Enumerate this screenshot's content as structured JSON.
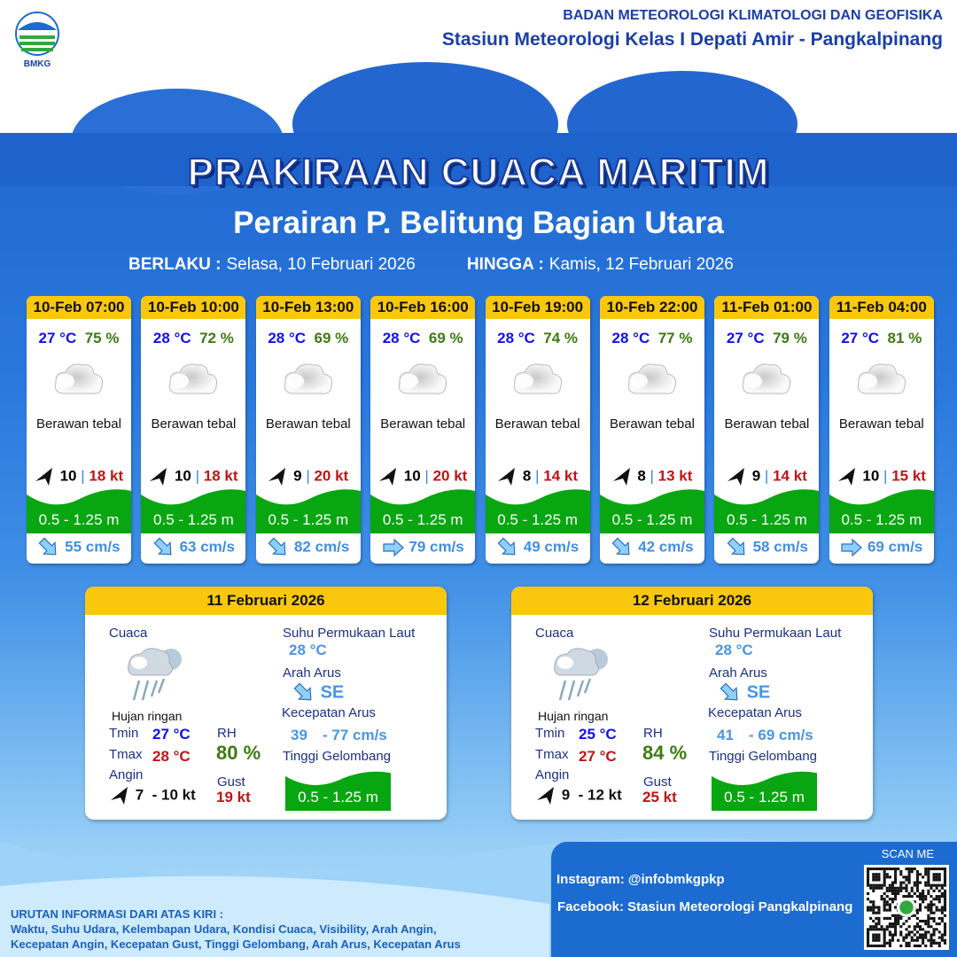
{
  "header": {
    "agency": "BADAN METEOROLOGI KLIMATOLOGI DAN GEOFISIKA",
    "station": "Stasiun Meteorologi Kelas I Depati Amir - Pangkalpinang",
    "logo_text": "BMKG"
  },
  "title": "PRAKIRAAN CUACA MARITIM",
  "subtitle": "Perairan P. Belitung Bagian Utara",
  "validity": {
    "from_label": "BERLAKU :",
    "from": "Selasa, 10 Februari 2026",
    "to_label": "HINGGA :",
    "to": "Kamis, 12 Februari 2026"
  },
  "colors": {
    "yellow": "#f9c80e",
    "wave_green": "#08a610",
    "temp_blue": "#1010f0",
    "gust_red": "#c01414",
    "rh_green": "#3e7a12"
  },
  "forecasts": [
    {
      "time": "10-Feb 07:00",
      "temp": "27 °C",
      "rh": "75 %",
      "icon": "thick-cloud-icon",
      "condition": "Berawan tebal",
      "wind": "10",
      "gust": "18 kt",
      "wave": "0.5 - 1.25 m",
      "current_dir": "SE",
      "current": "55 cm/s"
    },
    {
      "time": "10-Feb 10:00",
      "temp": "28 °C",
      "rh": "72 %",
      "icon": "thick-cloud-icon",
      "condition": "Berawan tebal",
      "wind": "10",
      "gust": "18 kt",
      "wave": "0.5 - 1.25 m",
      "current_dir": "SE",
      "current": "63 cm/s"
    },
    {
      "time": "10-Feb 13:00",
      "temp": "28 °C",
      "rh": "69 %",
      "icon": "thick-cloud-icon",
      "condition": "Berawan tebal",
      "wind": "9",
      "gust": "20 kt",
      "wave": "0.5 - 1.25 m",
      "current_dir": "SE",
      "current": "82 cm/s"
    },
    {
      "time": "10-Feb 16:00",
      "temp": "28 °C",
      "rh": "69 %",
      "icon": "thick-cloud-icon",
      "condition": "Berawan tebal",
      "wind": "10",
      "gust": "20 kt",
      "wave": "0.5 - 1.25 m",
      "current_dir": "E",
      "current": "79 cm/s"
    },
    {
      "time": "10-Feb 19:00",
      "temp": "28 °C",
      "rh": "74 %",
      "icon": "thick-cloud-icon",
      "condition": "Berawan tebal",
      "wind": "8",
      "gust": "14 kt",
      "wave": "0.5 - 1.25 m",
      "current_dir": "SE",
      "current": "49 cm/s"
    },
    {
      "time": "10-Feb 22:00",
      "temp": "28 °C",
      "rh": "77 %",
      "icon": "thick-cloud-icon",
      "condition": "Berawan tebal",
      "wind": "8",
      "gust": "13 kt",
      "wave": "0.5 - 1.25 m",
      "current_dir": "SE",
      "current": "42 cm/s"
    },
    {
      "time": "11-Feb 01:00",
      "temp": "27 °C",
      "rh": "79 %",
      "icon": "thick-cloud-icon",
      "condition": "Berawan tebal",
      "wind": "9",
      "gust": "14 kt",
      "wave": "0.5 - 1.25 m",
      "current_dir": "SE",
      "current": "58 cm/s"
    },
    {
      "time": "11-Feb 04:00",
      "temp": "27 °C",
      "rh": "81 %",
      "icon": "thick-cloud-icon",
      "condition": "Berawan tebal",
      "wind": "10",
      "gust": "15 kt",
      "wave": "0.5 - 1.25 m",
      "current_dir": "E",
      "current": "69 cm/s"
    }
  ],
  "daily": [
    {
      "date": "11 Februari 2026",
      "weather_label": "Cuaca",
      "condition": "Hujan ringan",
      "tmin_label": "Tmin",
      "tmin": "27 °C",
      "tmax_label": "Tmax",
      "tmax": "28 °C",
      "rh_label": "RH",
      "rh": "80 %",
      "wind_label": "Angin",
      "wind": "7  - 10 kt",
      "gust_label": "Gust",
      "gust": "19 kt",
      "sst_label": "Suhu Permukaan Laut",
      "sst": "28 °C",
      "current_dir_label": "Arah Arus",
      "current_dir": "SE",
      "current_speed_label": "Kecepatan Arus",
      "current_min": "39",
      "current_max": "- 77 cm/s",
      "wave_label": "Tinggi Gelombang",
      "wave": "0.5 - 1.25 m"
    },
    {
      "date": "12 Februari 2026",
      "weather_label": "Cuaca",
      "condition": "Hujan ringan",
      "tmin_label": "Tmin",
      "tmin": "25 °C",
      "tmax_label": "Tmax",
      "tmax": "27 °C",
      "rh_label": "RH",
      "rh": "84 %",
      "wind_label": "Angin",
      "wind": "9  - 12 kt",
      "gust_label": "Gust",
      "gust": "25 kt",
      "sst_label": "Suhu Permukaan Laut",
      "sst": "28 °C",
      "current_dir_label": "Arah Arus",
      "current_dir": "SE",
      "current_speed_label": "Kecepatan Arus",
      "current_min": "41",
      "current_max": "- 69 cm/s",
      "wave_label": "Tinggi Gelombang",
      "wave": "0.5 - 1.25 m"
    }
  ],
  "footer": {
    "legend_title": "URUTAN INFORMASI DARI ATAS KIRI :",
    "legend_line1": "Waktu, Suhu Udara, Kelembapan Udara, Kondisi Cuaca, Visibility, Arah Angin,",
    "legend_line2": "Kecepatan Angin, Kecepatan Gust, Tinggi Gelombang, Arah Arus, Kecepatan Arus",
    "instagram": "Instagram:  @infobmkgpkp",
    "facebook": "Facebook:  Stasiun  Meteorologi  Pangkalpinang",
    "scan": "SCAN ME"
  }
}
